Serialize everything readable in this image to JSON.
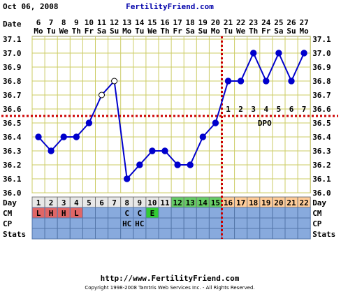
{
  "header": {
    "date": "Oct 06, 2008",
    "site": "FertilityFriend.com"
  },
  "footer": {
    "url": "http://www.FertilityFriend.com",
    "copyright": "Copyright 1998-2008 Tamtris Web Services Inc. - All Rights Reserved."
  },
  "chart_data": {
    "type": "line",
    "row_labels": {
      "date": "Date",
      "day": "Day",
      "cm": "CM",
      "cp": "CP",
      "stats": "Stats"
    },
    "dates": [
      "6",
      "7",
      "8",
      "9",
      "10",
      "11",
      "12",
      "13",
      "14",
      "15",
      "16",
      "17",
      "18",
      "19",
      "20",
      "21",
      "22",
      "23",
      "24",
      "25",
      "26",
      "27"
    ],
    "weekdays": [
      "Mo",
      "Tu",
      "We",
      "Th",
      "Fr",
      "Sa",
      "Su",
      "Mo",
      "Tu",
      "We",
      "Th",
      "Fr",
      "Sa",
      "Su",
      "Mo",
      "Tu",
      "We",
      "Th",
      "Fr",
      "Sa",
      "Su",
      "Mo"
    ],
    "days": [
      "1",
      "2",
      "3",
      "4",
      "5",
      "6",
      "7",
      "8",
      "9",
      "10",
      "11",
      "12",
      "13",
      "14",
      "15",
      "16",
      "17",
      "18",
      "19",
      "20",
      "21",
      "22"
    ],
    "temps": [
      36.4,
      36.3,
      36.4,
      36.4,
      36.5,
      36.7,
      36.8,
      36.1,
      36.2,
      36.3,
      36.3,
      36.2,
      36.2,
      36.4,
      36.5,
      36.8,
      36.8,
      37.0,
      36.8,
      37.0,
      36.8,
      37.0
    ],
    "open_points": [
      6,
      7
    ],
    "y_ticks": [
      "37.1",
      "37.0",
      "36.9",
      "36.8",
      "36.7",
      "36.6",
      "36.5",
      "36.4",
      "36.3",
      "36.2",
      "36.1",
      "36.0"
    ],
    "ylim": [
      36.0,
      37.1
    ],
    "coverline": 36.55,
    "ovulation_day": 15,
    "dpo_label": "DPO",
    "dpo_numbers": [
      "1",
      "2",
      "3",
      "4",
      "5",
      "6",
      "7"
    ],
    "cm": [
      "L",
      "H",
      "H",
      "L",
      "",
      "",
      "",
      "C",
      "C",
      "E",
      "",
      "",
      "",
      "",
      "",
      "",
      "",
      "",
      "",
      "",
      "",
      ""
    ],
    "cp": [
      "",
      "",
      "",
      "",
      "",
      "",
      "",
      "HC",
      "HC",
      "",
      "",
      "",
      "",
      "",
      "",
      "",
      "",
      "",
      "",
      "",
      "",
      ""
    ],
    "day_colors": {
      "menses": "#e8e8e8",
      "fertile": "#66cc66",
      "luteal": "#ffcc99",
      "cm_red": "#e06666",
      "cm_egg": "#33cc33",
      "row_blue": "#88aadd",
      "line": "#0000cc",
      "marker": "#cc0000",
      "grid": "#cccc66"
    },
    "grid": true
  }
}
